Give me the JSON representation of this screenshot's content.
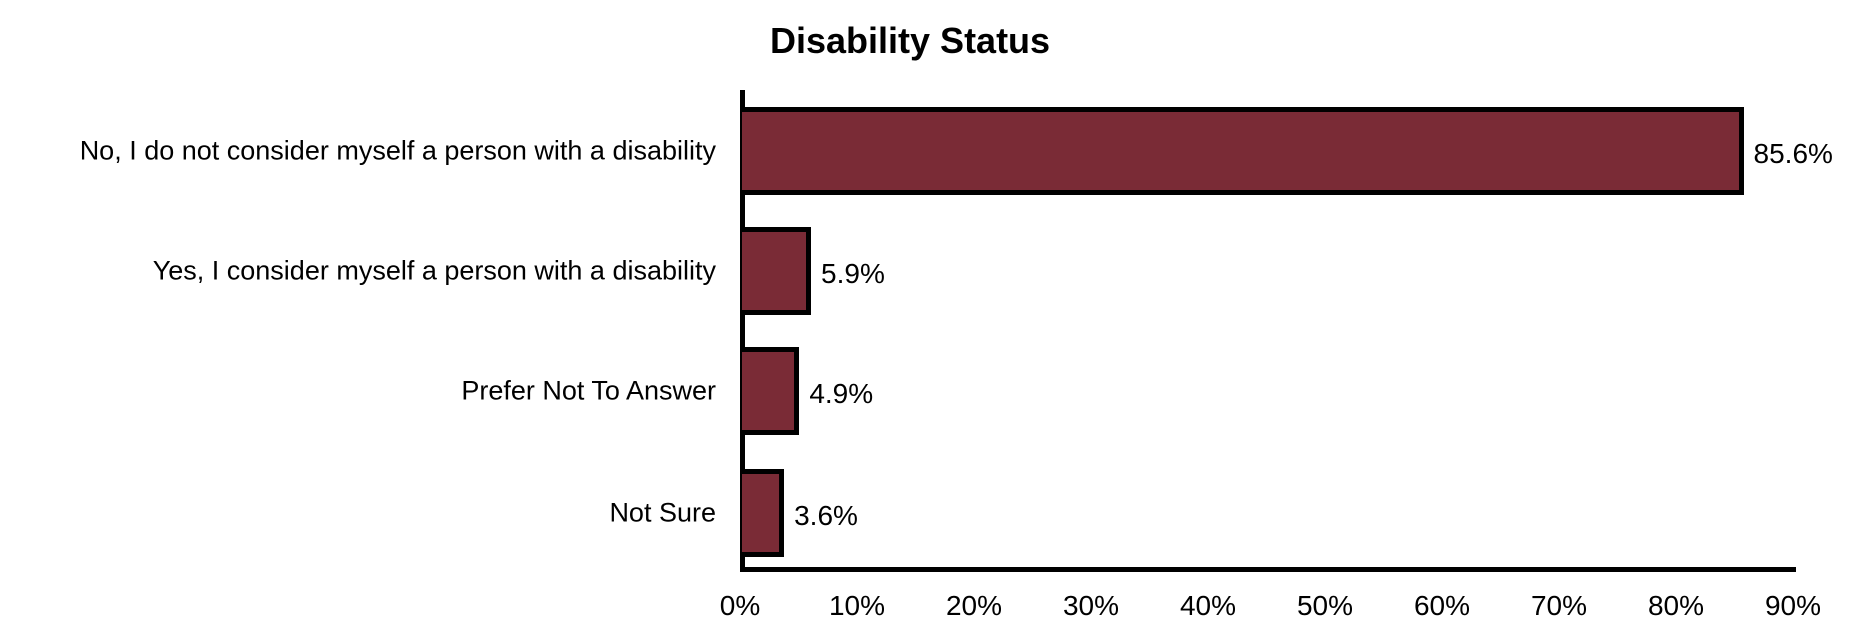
{
  "chart_data": {
    "type": "bar",
    "orientation": "horizontal",
    "title": "Disability Status",
    "xlabel": "",
    "ylabel": "",
    "categories": [
      "No, I do not consider myself a person with a disability",
      "Yes, I consider myself a person with a disability",
      "Prefer Not To Answer",
      "Not Sure"
    ],
    "values": [
      85.6,
      5.9,
      4.9,
      3.6
    ],
    "value_labels": [
      "85.6%",
      "5.9%",
      "4.9%",
      "3.6%"
    ],
    "xlim": [
      0,
      90
    ],
    "x_ticks": [
      "0%",
      "10%",
      "20%",
      "30%",
      "40%",
      "50%",
      "60%",
      "70%",
      "80%",
      "90%"
    ],
    "grid": false,
    "legend": null,
    "bar_color": "#7a2b36",
    "bar_edge_color": "#000000"
  }
}
